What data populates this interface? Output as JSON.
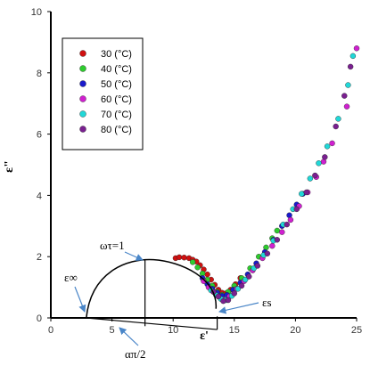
{
  "chart_data": {
    "type": "scatter",
    "title": "",
    "xlabel": "ε'",
    "ylabel": "ε\"",
    "xlim": [
      0,
      25
    ],
    "ylim": [
      0,
      10
    ],
    "x_ticks": [
      "0",
      "5",
      "10",
      "15",
      "20",
      "25"
    ],
    "y_ticks": [
      "0",
      "2",
      "4",
      "6",
      "8",
      "10"
    ],
    "grid": false,
    "legend_position": "top-left",
    "series": [
      {
        "name": "30 (°C)",
        "color": "#d01010",
        "points": [
          [
            10.2,
            1.95
          ],
          [
            10.5,
            1.98
          ],
          [
            10.9,
            1.97
          ],
          [
            11.3,
            1.95
          ],
          [
            11.6,
            1.9
          ],
          [
            11.9,
            1.84
          ],
          [
            12.2,
            1.72
          ],
          [
            12.5,
            1.58
          ],
          [
            12.8,
            1.42
          ],
          [
            13.1,
            1.25
          ],
          [
            13.4,
            1.08
          ],
          [
            13.7,
            0.92
          ],
          [
            14.0,
            0.82
          ],
          [
            14.3,
            0.8
          ],
          [
            14.7,
            0.92
          ],
          [
            15.1,
            1.1
          ],
          [
            15.5,
            1.3
          ]
        ]
      },
      {
        "name": "40 (°C)",
        "color": "#2ecc2e",
        "points": [
          [
            11.6,
            1.82
          ],
          [
            12.0,
            1.65
          ],
          [
            12.4,
            1.45
          ],
          [
            12.8,
            1.25
          ],
          [
            13.2,
            1.05
          ],
          [
            13.6,
            0.85
          ],
          [
            14.0,
            0.75
          ],
          [
            14.5,
            0.85
          ],
          [
            15.0,
            1.05
          ],
          [
            15.6,
            1.3
          ],
          [
            16.3,
            1.62
          ],
          [
            17.0,
            2.0
          ],
          [
            17.6,
            2.3
          ],
          [
            18.1,
            2.6
          ],
          [
            18.5,
            2.85
          ]
        ]
      },
      {
        "name": "50 (°C)",
        "color": "#1a1acc",
        "points": [
          [
            12.4,
            1.3
          ],
          [
            12.8,
            1.1
          ],
          [
            13.2,
            0.95
          ],
          [
            13.6,
            0.82
          ],
          [
            14.0,
            0.72
          ],
          [
            14.4,
            0.75
          ],
          [
            14.9,
            0.92
          ],
          [
            15.5,
            1.15
          ],
          [
            16.1,
            1.42
          ],
          [
            16.8,
            1.78
          ],
          [
            17.5,
            2.15
          ],
          [
            18.2,
            2.55
          ],
          [
            18.9,
            3.0
          ],
          [
            19.5,
            3.35
          ],
          [
            20.1,
            3.7
          ],
          [
            20.6,
            4.05
          ]
        ]
      },
      {
        "name": "60 (°C)",
        "color": "#d020d0",
        "points": [
          [
            12.5,
            1.2
          ],
          [
            12.9,
            1.0
          ],
          [
            13.3,
            0.85
          ],
          [
            13.7,
            0.7
          ],
          [
            14.1,
            0.6
          ],
          [
            14.6,
            0.7
          ],
          [
            15.2,
            0.95
          ],
          [
            15.8,
            1.2
          ],
          [
            16.5,
            1.55
          ],
          [
            17.3,
            1.95
          ],
          [
            18.1,
            2.35
          ],
          [
            18.9,
            2.8
          ],
          [
            19.6,
            3.2
          ],
          [
            20.3,
            3.65
          ],
          [
            21.0,
            4.1
          ],
          [
            21.7,
            4.6
          ],
          [
            22.3,
            5.1
          ],
          [
            23.0,
            5.7
          ],
          [
            24.2,
            6.9
          ],
          [
            25.0,
            8.8
          ]
        ]
      },
      {
        "name": "70 (°C)",
        "color": "#20d8d8",
        "points": [
          [
            13.1,
            0.9
          ],
          [
            13.5,
            0.75
          ],
          [
            13.9,
            0.62
          ],
          [
            14.3,
            0.58
          ],
          [
            14.8,
            0.72
          ],
          [
            15.3,
            0.95
          ],
          [
            15.9,
            1.25
          ],
          [
            16.6,
            1.62
          ],
          [
            17.4,
            2.05
          ],
          [
            18.2,
            2.52
          ],
          [
            19.0,
            3.05
          ],
          [
            19.8,
            3.55
          ],
          [
            20.5,
            4.05
          ],
          [
            21.2,
            4.55
          ],
          [
            21.9,
            5.05
          ],
          [
            22.6,
            5.6
          ],
          [
            23.5,
            6.5
          ],
          [
            24.3,
            7.6
          ],
          [
            24.7,
            8.55
          ]
        ]
      },
      {
        "name": "80 (°C)",
        "color": "#7a2090",
        "points": [
          [
            13.3,
            0.85
          ],
          [
            13.7,
            0.7
          ],
          [
            14.1,
            0.55
          ],
          [
            14.5,
            0.58
          ],
          [
            15.0,
            0.8
          ],
          [
            15.6,
            1.05
          ],
          [
            16.2,
            1.35
          ],
          [
            16.9,
            1.7
          ],
          [
            17.7,
            2.1
          ],
          [
            18.5,
            2.55
          ],
          [
            19.3,
            3.05
          ],
          [
            20.1,
            3.55
          ],
          [
            20.9,
            4.1
          ],
          [
            21.6,
            4.65
          ],
          [
            22.4,
            5.25
          ],
          [
            23.3,
            6.25
          ],
          [
            24.0,
            7.25
          ],
          [
            24.5,
            8.2
          ]
        ]
      }
    ],
    "annotations": [
      "ωτ=1",
      "ε∞",
      "εs",
      "απ/2"
    ]
  },
  "colors": {
    "axis": "#000000",
    "arc": "#000000"
  }
}
